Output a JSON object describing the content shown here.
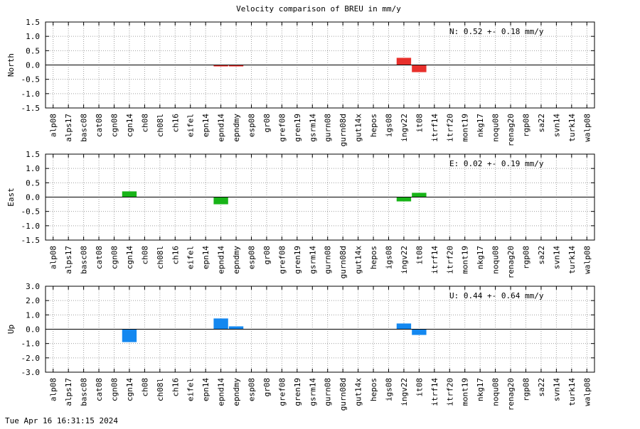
{
  "chart_data": {
    "type": "bar",
    "title": "Velocity comparison of BREU in mm/y",
    "categories": [
      "alp08",
      "alps17",
      "basc08",
      "cat08",
      "cgn08",
      "cgn14",
      "ch08",
      "ch08l",
      "ch16",
      "eifel",
      "epn14",
      "epnd14",
      "epndmy",
      "esp08",
      "gr08",
      "gref08",
      "gren19",
      "gsrm14",
      "gurn08",
      "gurn08d",
      "gut14x",
      "hepos",
      "igs08",
      "ingv22",
      "it08",
      "itrf14",
      "itrf20",
      "mont19",
      "nkg17",
      "noqu08",
      "renag20",
      "rgp08",
      "sa22",
      "svn14",
      "turk14",
      "walp08"
    ],
    "panels": [
      {
        "ylabel": "North",
        "ylim": [
          -1.5,
          1.5
        ],
        "yticks": [
          "1.5",
          "1.0",
          "0.5",
          "0.0",
          "-0.5",
          "-1.0",
          "-1.5"
        ],
        "color": "#e8302c",
        "annotation": "N:   0.52 +-  0.18 mm/y",
        "bars": [
          {
            "category": "epnd14",
            "value": -0.05
          },
          {
            "category": "epndmy",
            "value": -0.05
          },
          {
            "category": "ingv22",
            "value": 0.25
          },
          {
            "category": "it08",
            "value": -0.25
          }
        ]
      },
      {
        "ylabel": "East",
        "ylim": [
          -1.5,
          1.5
        ],
        "yticks": [
          "1.5",
          "1.0",
          "0.5",
          "0.0",
          "-0.5",
          "-1.0",
          "-1.5"
        ],
        "color": "#18b418",
        "annotation": "E:   0.02 +-  0.19 mm/y",
        "bars": [
          {
            "category": "cgn14",
            "value": 0.2
          },
          {
            "category": "epnd14",
            "value": -0.25
          },
          {
            "category": "ingv22",
            "value": -0.15
          },
          {
            "category": "it08",
            "value": 0.15
          }
        ]
      },
      {
        "ylabel": "Up",
        "ylim": [
          -3.0,
          3.0
        ],
        "yticks": [
          "3.0",
          "2.0",
          "1.0",
          "0.0",
          "-1.0",
          "-2.0",
          "-3.0"
        ],
        "color": "#1488f0",
        "annotation": "U:   0.44 +-  0.64 mm/y",
        "bars": [
          {
            "category": "cgn14",
            "value": -0.9
          },
          {
            "category": "epnd14",
            "value": 0.75
          },
          {
            "category": "epndmy",
            "value": 0.2
          },
          {
            "category": "ingv22",
            "value": 0.4
          },
          {
            "category": "it08",
            "value": -0.4
          }
        ]
      }
    ]
  },
  "footer": {
    "timestamp": "Tue Apr 16 16:31:15 2024"
  }
}
